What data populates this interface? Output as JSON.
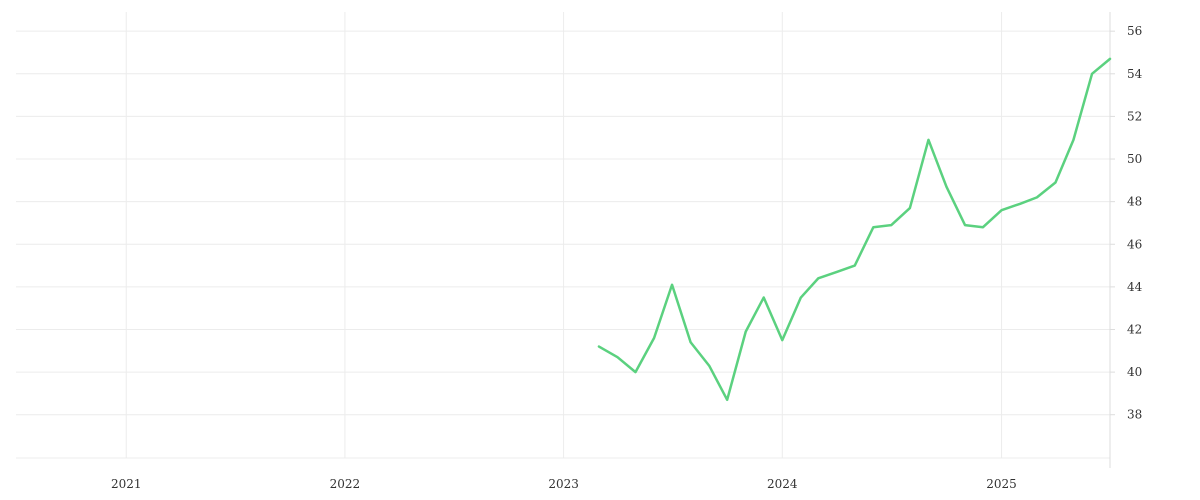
{
  "chart_data": {
    "type": "line",
    "title": "",
    "xlabel": "",
    "ylabel": "",
    "grid": true,
    "legend": "none",
    "xlim": [
      "2020-07-01",
      "2025-07-01"
    ],
    "ylim": [
      35.5,
      56.9
    ],
    "x_ticks": [
      {
        "date": "2021-01-01",
        "label": "2021"
      },
      {
        "date": "2022-01-01",
        "label": "2022"
      },
      {
        "date": "2023-01-01",
        "label": "2023"
      },
      {
        "date": "2024-01-01",
        "label": "2024"
      },
      {
        "date": "2025-01-01",
        "label": "2025"
      }
    ],
    "y_ticks": [
      38,
      40,
      42,
      44,
      46,
      48,
      50,
      52,
      54,
      56
    ],
    "y_axis_side": "right",
    "series": [
      {
        "color": "#5bd17f",
        "x": [
          "2023-03-01",
          "2023-04-01",
          "2023-05-01",
          "2023-06-01",
          "2023-07-01",
          "2023-08-01",
          "2023-09-01",
          "2023-10-01",
          "2023-11-01",
          "2023-12-01",
          "2024-01-01",
          "2024-02-01",
          "2024-03-01",
          "2024-04-01",
          "2024-05-01",
          "2024-06-01",
          "2024-07-01",
          "2024-08-01",
          "2024-09-01",
          "2024-10-01",
          "2024-11-01",
          "2024-12-01",
          "2025-01-01",
          "2025-02-01",
          "2025-03-01",
          "2025-04-01",
          "2025-05-01",
          "2025-06-01",
          "2025-07-01"
        ],
        "values": [
          41.2,
          40.7,
          40.0,
          41.6,
          44.1,
          41.4,
          40.3,
          38.7,
          41.9,
          43.5,
          41.5,
          43.5,
          44.4,
          44.7,
          45.0,
          46.8,
          46.9,
          47.7,
          50.9,
          48.7,
          46.9,
          46.8,
          47.6,
          47.9,
          48.2,
          48.9,
          50.9,
          54.0,
          54.7
        ]
      }
    ]
  }
}
